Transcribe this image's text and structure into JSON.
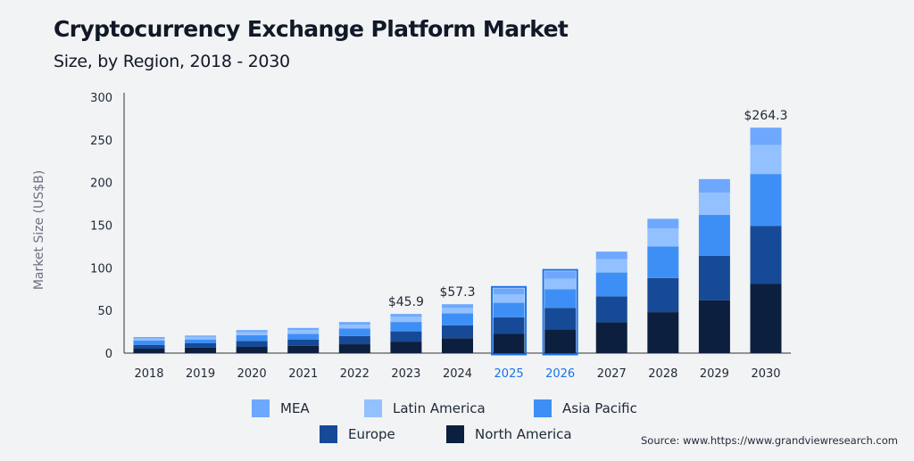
{
  "chart_data": {
    "type": "bar",
    "stacked": true,
    "title": "Cryptocurrency Exchange Platform Market",
    "subtitle": "Size, by Region, 2018 - 2030",
    "xlabel": "",
    "ylabel": "Market Size (US$B)",
    "ylim": [
      0,
      300
    ],
    "yticks": [
      0,
      50,
      100,
      150,
      200,
      250,
      300
    ],
    "grid": false,
    "legend_placement": "bottom",
    "categories": [
      "2018",
      "2019",
      "2020",
      "2021",
      "2022",
      "2023",
      "2024",
      "2025",
      "2026",
      "2027",
      "2028",
      "2029",
      "2030"
    ],
    "highlighted_categories": [
      "2025",
      "2026"
    ],
    "series": [
      {
        "name": "North America",
        "color": "#0c1f3f",
        "values": [
          5.2,
          6.6,
          7.3,
          8.7,
          10.4,
          13.5,
          17.5,
          22.5,
          28,
          36,
          48,
          62,
          81
        ]
      },
      {
        "name": "Europe",
        "color": "#174a96",
        "values": [
          4.5,
          4.9,
          7,
          7.3,
          9.6,
          12,
          15,
          19.5,
          25,
          30.5,
          40,
          52,
          68
        ]
      },
      {
        "name": "Asia Pacific",
        "color": "#3d8ff5",
        "values": [
          5,
          4.5,
          6.6,
          6.6,
          9,
          11,
          14,
          17,
          22,
          28,
          37,
          48,
          61
        ]
      },
      {
        "name": "Latin America",
        "color": "#93c1ff",
        "values": [
          2.5,
          3,
          3.5,
          4.4,
          4.4,
          6,
          6.5,
          10,
          12,
          15.5,
          21,
          26,
          34
        ]
      },
      {
        "name": "MEA",
        "color": "#6ea8fe",
        "values": [
          1.6,
          1.6,
          2.6,
          2.5,
          3,
          3.4,
          4.3,
          7,
          9,
          9,
          11.5,
          16,
          20.3
        ]
      }
    ],
    "data_labels": [
      {
        "category": "2023",
        "text": "$45.9"
      },
      {
        "category": "2024",
        "text": "$57.3"
      },
      {
        "category": "2030",
        "text": "$264.3"
      }
    ],
    "legend_order": [
      "MEA",
      "Latin America",
      "Asia Pacific",
      "Europe",
      "North America"
    ],
    "highlight_color": "#1a73e8"
  },
  "source": "Source: www.https://www.grandviewresearch.com"
}
